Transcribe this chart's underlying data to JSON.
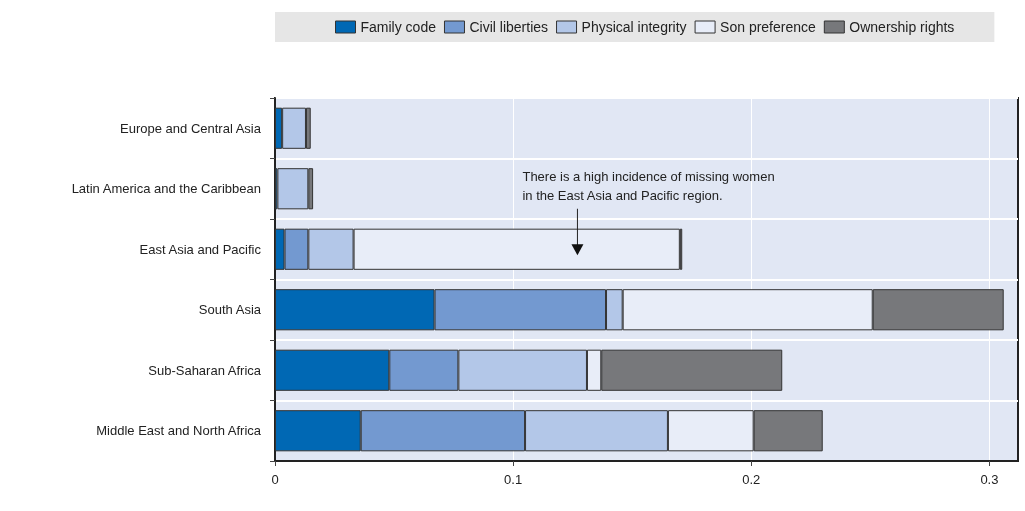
{
  "chart_data": {
    "type": "bar",
    "orientation": "horizontal",
    "stacked": true,
    "categories": [
      "Europe and Central Asia",
      "Latin America and the Caribbean",
      "East Asia and Pacific",
      "South Asia",
      "Sub-Saharan Africa",
      "Middle East and North Africa"
    ],
    "series": [
      {
        "name": "Family code",
        "color": "#0068b4",
        "values": [
          0.003,
          0.001,
          0.004,
          0.067,
          0.048,
          0.036
        ]
      },
      {
        "name": "Civil liberties",
        "color": "#7399d0",
        "values": [
          null,
          null,
          0.01,
          0.072,
          0.029,
          0.069
        ]
      },
      {
        "name": "Physical integrity",
        "color": "#b3c7e8",
        "values": [
          0.01,
          0.013,
          0.019,
          0.007,
          0.054,
          0.06
        ]
      },
      {
        "name": "Son preference",
        "color": "#e8edf8",
        "values": [
          null,
          null,
          0.137,
          0.105,
          0.006,
          0.036
        ]
      },
      {
        "name": "Ownership rights",
        "color": "#77787b",
        "values": [
          0.002,
          0.002,
          0.001,
          0.055,
          0.076,
          0.029
        ]
      }
    ],
    "xlim": [
      0,
      0.312
    ],
    "xticks": [
      0,
      0.1,
      0.2,
      0.3
    ],
    "grid": true,
    "legend": "top",
    "annotations": [
      {
        "text": "There is a high incidence of missing women\nin the East Asia and Pacific region.",
        "x": 0.127,
        "y": "East Asia and Pacific"
      }
    ]
  }
}
